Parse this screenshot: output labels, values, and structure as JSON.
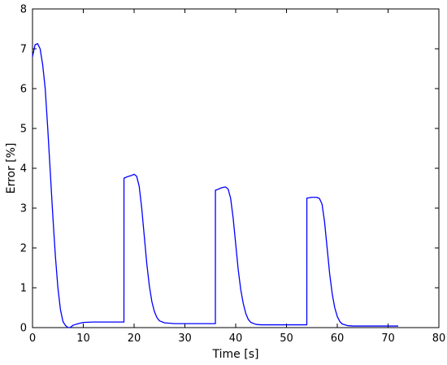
{
  "chart_data": {
    "type": "line",
    "title": "",
    "xlabel": "Time [s]",
    "ylabel": "Error [%]",
    "xlim": [
      0,
      80
    ],
    "ylim": [
      0,
      8
    ],
    "x_ticks": [
      0,
      10,
      20,
      30,
      40,
      50,
      60,
      70,
      80
    ],
    "y_ticks": [
      0,
      1,
      2,
      3,
      4,
      5,
      6,
      7,
      8
    ],
    "grid": false,
    "legend": "none",
    "series": [
      {
        "color": "#0000ff",
        "x": [
          0,
          0.5,
          1,
          1.5,
          2,
          2.5,
          3,
          3.5,
          4,
          4.5,
          5,
          5.5,
          6,
          6.5,
          7,
          7.3,
          7.6,
          8,
          9,
          10,
          12,
          14,
          16,
          18,
          18.01,
          18.5,
          19,
          19.5,
          20,
          20.5,
          21,
          21.5,
          22,
          22.5,
          23,
          23.5,
          24,
          24.5,
          25,
          26,
          27,
          28,
          30,
          32,
          34,
          36,
          36.01,
          36.5,
          37,
          37.5,
          38,
          38.5,
          39,
          39.5,
          40,
          40.5,
          41,
          41.5,
          42,
          42.5,
          43,
          44,
          45,
          46,
          48,
          50,
          52,
          54,
          54.01,
          54.5,
          55,
          55.5,
          56,
          56.5,
          57,
          57.5,
          58,
          58.5,
          59,
          59.5,
          60,
          60.5,
          61,
          62,
          63,
          64,
          66,
          68,
          70,
          72
        ],
        "y": [
          6.8,
          7.1,
          7.13,
          7.0,
          6.6,
          6.0,
          5.0,
          3.9,
          2.8,
          1.8,
          1.0,
          0.45,
          0.15,
          0.05,
          0.0,
          0.0,
          0.02,
          0.06,
          0.1,
          0.13,
          0.14,
          0.14,
          0.14,
          0.14,
          3.75,
          3.78,
          3.8,
          3.82,
          3.85,
          3.8,
          3.55,
          3.0,
          2.3,
          1.6,
          1.05,
          0.65,
          0.4,
          0.25,
          0.17,
          0.12,
          0.11,
          0.1,
          0.1,
          0.1,
          0.1,
          0.1,
          3.45,
          3.47,
          3.5,
          3.52,
          3.53,
          3.48,
          3.25,
          2.75,
          2.1,
          1.45,
          0.95,
          0.6,
          0.35,
          0.2,
          0.13,
          0.08,
          0.07,
          0.07,
          0.07,
          0.07,
          0.07,
          0.07,
          3.25,
          3.26,
          3.27,
          3.27,
          3.27,
          3.24,
          3.1,
          2.65,
          2.0,
          1.35,
          0.85,
          0.5,
          0.28,
          0.15,
          0.09,
          0.05,
          0.04,
          0.04,
          0.04,
          0.04,
          0.04,
          0.04
        ]
      }
    ]
  }
}
